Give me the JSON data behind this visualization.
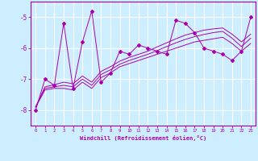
{
  "xlabel": "Windchill (Refroidissement éolien,°C)",
  "x_values": [
    0,
    1,
    2,
    3,
    4,
    5,
    6,
    7,
    8,
    9,
    10,
    11,
    12,
    13,
    14,
    15,
    16,
    17,
    18,
    19,
    20,
    21,
    22,
    23
  ],
  "line1_y": [
    -8.0,
    -7.0,
    -7.2,
    -5.2,
    -7.3,
    -5.8,
    -4.8,
    -7.1,
    -6.8,
    -6.1,
    -6.2,
    -5.9,
    -6.0,
    -6.1,
    -6.2,
    -5.1,
    -5.2,
    -5.5,
    -6.0,
    -6.1,
    -6.2,
    -6.4,
    -6.1,
    -5.0
  ],
  "line2_y": [
    -7.9,
    -7.35,
    -7.3,
    -7.3,
    -7.35,
    -7.1,
    -7.3,
    -6.95,
    -6.8,
    -6.6,
    -6.5,
    -6.4,
    -6.3,
    -6.2,
    -6.1,
    -6.0,
    -5.9,
    -5.8,
    -5.75,
    -5.7,
    -5.65,
    -5.85,
    -6.1,
    -5.85
  ],
  "line3_y": [
    -7.9,
    -7.3,
    -7.25,
    -7.2,
    -7.25,
    -7.0,
    -7.2,
    -6.85,
    -6.7,
    -6.52,
    -6.4,
    -6.3,
    -6.2,
    -6.08,
    -5.95,
    -5.83,
    -5.72,
    -5.63,
    -5.56,
    -5.5,
    -5.46,
    -5.68,
    -5.95,
    -5.68
  ],
  "line4_y": [
    -7.9,
    -7.25,
    -7.18,
    -7.1,
    -7.15,
    -6.9,
    -7.1,
    -6.75,
    -6.6,
    -6.42,
    -6.3,
    -6.2,
    -6.1,
    -5.96,
    -5.83,
    -5.7,
    -5.58,
    -5.5,
    -5.42,
    -5.38,
    -5.35,
    -5.55,
    -5.8,
    -5.55
  ],
  "bg_color": "#cceeff",
  "line_color": "#aa00aa",
  "grid_color": "#ffffff",
  "xlim": [
    -0.5,
    23.5
  ],
  "ylim": [
    -8.5,
    -4.5
  ],
  "yticks": [
    -8,
    -7,
    -6,
    -5
  ],
  "xticks": [
    0,
    1,
    2,
    3,
    4,
    5,
    6,
    7,
    8,
    9,
    10,
    11,
    12,
    13,
    14,
    15,
    16,
    17,
    18,
    19,
    20,
    21,
    22,
    23
  ]
}
